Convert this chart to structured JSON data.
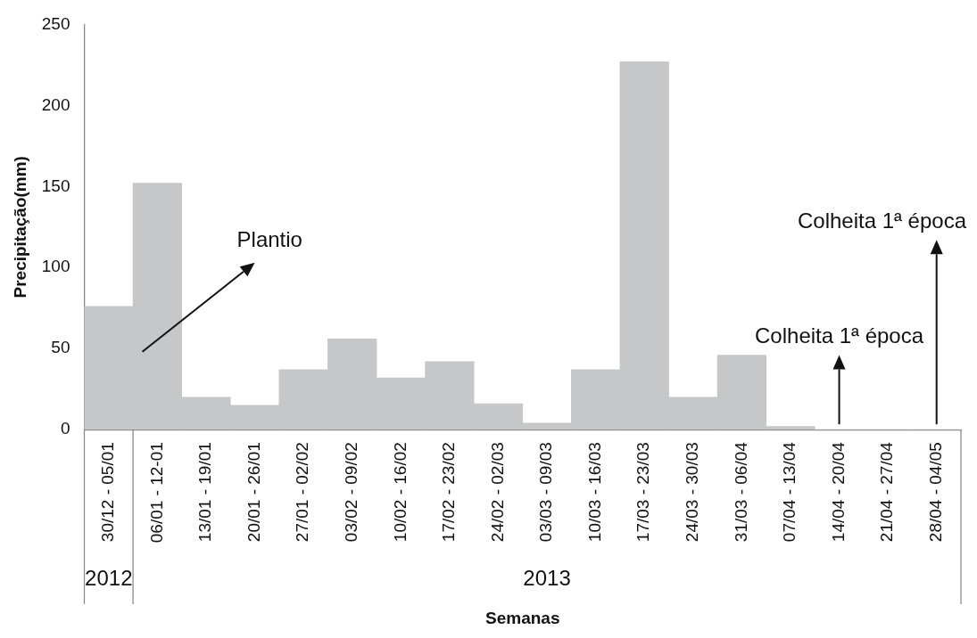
{
  "chart_data": {
    "type": "bar",
    "xlabel": "Semanas",
    "ylabel": "Precipitação(mm)",
    "categories": [
      "30/12 - 05/01",
      "06/01 - 12-01",
      "13/01 - 19/01",
      "20/01 - 26/01",
      "27/01 - 02/02",
      "03/02 - 09/02",
      "10/02 - 16/02",
      "17/02 - 23/02",
      "24/02 - 02/03",
      "03/03 - 09/03",
      "10/03 - 16/03",
      "17/03 - 23/03",
      "24/03 - 30/03",
      "31/03 - 06/04",
      "07/04 - 13/04",
      "14/04 - 20/04",
      "21/04 - 27/04",
      "28/04 - 04/05"
    ],
    "values": [
      76,
      152,
      20,
      15,
      37,
      56,
      32,
      42,
      16,
      4,
      37,
      227,
      20,
      46,
      2,
      0,
      0,
      0
    ],
    "color": "#c6c7c9",
    "ylim": [
      0,
      250
    ],
    "yticks": [
      0,
      50,
      100,
      150,
      200,
      250
    ],
    "grid": false,
    "legend": false,
    "annotations": [
      "Plantio",
      "Colheita 1ª época",
      "Colheita 1ª época",
      "2012",
      "2013"
    ]
  }
}
